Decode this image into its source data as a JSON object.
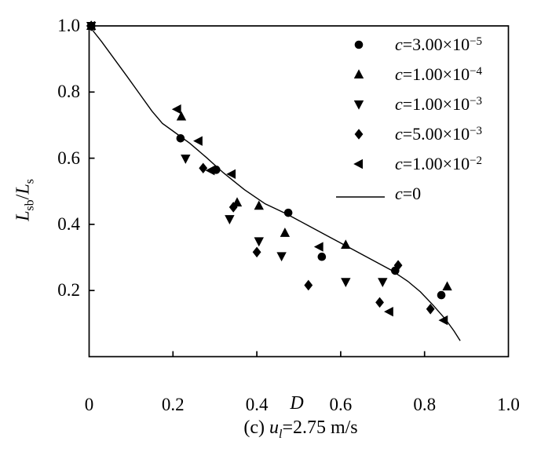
{
  "figure": {
    "xlabel": "D",
    "ylabel": {
      "L1": "L",
      "sub1": "sb",
      "slash": "/",
      "L2": "L",
      "sub2": "s"
    },
    "caption": {
      "prefix": "(c) ",
      "var": "u",
      "sub": "l",
      "rest": "=2.75 m/s"
    }
  },
  "colors": {
    "foreground": "#000000",
    "background": "#ffffff"
  },
  "chart_data": {
    "type": "scatter",
    "title": "",
    "caption": "(c) ul=2.75 m/s",
    "xlabel": "D",
    "ylabel": "Lsb/Ls",
    "xlim": [
      0,
      1.0
    ],
    "ylim": [
      0,
      1.0
    ],
    "grid": false,
    "legend_position": "top-right",
    "x_ticks": [
      {
        "label": "0",
        "value": 0.0
      },
      {
        "label": "0.2",
        "value": 0.2
      },
      {
        "label": "0.4",
        "value": 0.4
      },
      {
        "label": "0.6",
        "value": 0.6
      },
      {
        "label": "0.8",
        "value": 0.8
      },
      {
        "label": "1.0",
        "value": 1.0
      }
    ],
    "y_ticks": [
      {
        "label": "0.2",
        "value": 0.2
      },
      {
        "label": "0.4",
        "value": 0.4
      },
      {
        "label": "0.6",
        "value": 0.6
      },
      {
        "label": "0.8",
        "value": 0.8
      },
      {
        "label": "1.0",
        "value": 1.0
      }
    ],
    "legend": [
      {
        "marker": "circle",
        "label_c": "c",
        "label_main": "=3.00×10",
        "label_sup": "−5"
      },
      {
        "marker": "triangle-up",
        "label_c": "c",
        "label_main": "=1.00×10",
        "label_sup": "−4"
      },
      {
        "marker": "triangle-down",
        "label_c": "c",
        "label_main": "=1.00×10",
        "label_sup": "−3"
      },
      {
        "marker": "diamond",
        "label_c": "c",
        "label_main": "=5.00×10",
        "label_sup": "−3"
      },
      {
        "marker": "triangle-left",
        "label_c": "c",
        "label_main": "=1.00×10",
        "label_sup": "−2"
      },
      {
        "marker": "line",
        "label_c": "c",
        "label_main": "=0",
        "label_sup": ""
      }
    ],
    "series": [
      {
        "name": "c=3.00×10−5",
        "marker": "circle",
        "points": [
          [
            0.005,
            1.0
          ],
          [
            0.218,
            0.66
          ],
          [
            0.303,
            0.565
          ],
          [
            0.475,
            0.435
          ],
          [
            0.555,
            0.302
          ],
          [
            0.73,
            0.26
          ],
          [
            0.84,
            0.186
          ]
        ]
      },
      {
        "name": "c=1.00×10−4",
        "marker": "triangle-up",
        "points": [
          [
            0.005,
            1.0
          ],
          [
            0.22,
            0.726
          ],
          [
            0.353,
            0.466
          ],
          [
            0.405,
            0.456
          ],
          [
            0.467,
            0.374
          ],
          [
            0.612,
            0.338
          ],
          [
            0.854,
            0.212
          ]
        ]
      },
      {
        "name": "c=1.00×10−3",
        "marker": "triangle-down",
        "points": [
          [
            0.005,
            1.0
          ],
          [
            0.23,
            0.599
          ],
          [
            0.335,
            0.416
          ],
          [
            0.405,
            0.349
          ],
          [
            0.459,
            0.304
          ],
          [
            0.612,
            0.226
          ],
          [
            0.7,
            0.226
          ]
        ]
      },
      {
        "name": "c=5.00×10−3",
        "marker": "diamond",
        "points": [
          [
            0.005,
            1.0
          ],
          [
            0.272,
            0.57
          ],
          [
            0.344,
            0.452
          ],
          [
            0.4,
            0.316
          ],
          [
            0.523,
            0.216
          ],
          [
            0.693,
            0.164
          ],
          [
            0.737,
            0.276
          ],
          [
            0.814,
            0.144
          ]
        ]
      },
      {
        "name": "c=1.00×10−2",
        "marker": "triangle-left",
        "points": [
          [
            0.005,
            1.0
          ],
          [
            0.21,
            0.748
          ],
          [
            0.261,
            0.652
          ],
          [
            0.29,
            0.563
          ],
          [
            0.34,
            0.552
          ],
          [
            0.549,
            0.332
          ],
          [
            0.716,
            0.136
          ],
          [
            0.846,
            0.11
          ]
        ]
      },
      {
        "name": "c=0",
        "marker": "line",
        "points": [
          [
            0.0,
            1.0
          ],
          [
            0.03,
            0.952
          ],
          [
            0.06,
            0.9
          ],
          [
            0.09,
            0.848
          ],
          [
            0.12,
            0.795
          ],
          [
            0.15,
            0.742
          ],
          [
            0.175,
            0.705
          ],
          [
            0.2,
            0.682
          ],
          [
            0.24,
            0.645
          ],
          [
            0.28,
            0.602
          ],
          [
            0.32,
            0.556
          ],
          [
            0.37,
            0.505
          ],
          [
            0.42,
            0.462
          ],
          [
            0.47,
            0.432
          ],
          [
            0.52,
            0.398
          ],
          [
            0.57,
            0.364
          ],
          [
            0.62,
            0.33
          ],
          [
            0.67,
            0.296
          ],
          [
            0.72,
            0.262
          ],
          [
            0.76,
            0.228
          ],
          [
            0.79,
            0.196
          ],
          [
            0.82,
            0.156
          ],
          [
            0.85,
            0.113
          ],
          [
            0.87,
            0.078
          ],
          [
            0.885,
            0.048
          ]
        ]
      }
    ]
  }
}
